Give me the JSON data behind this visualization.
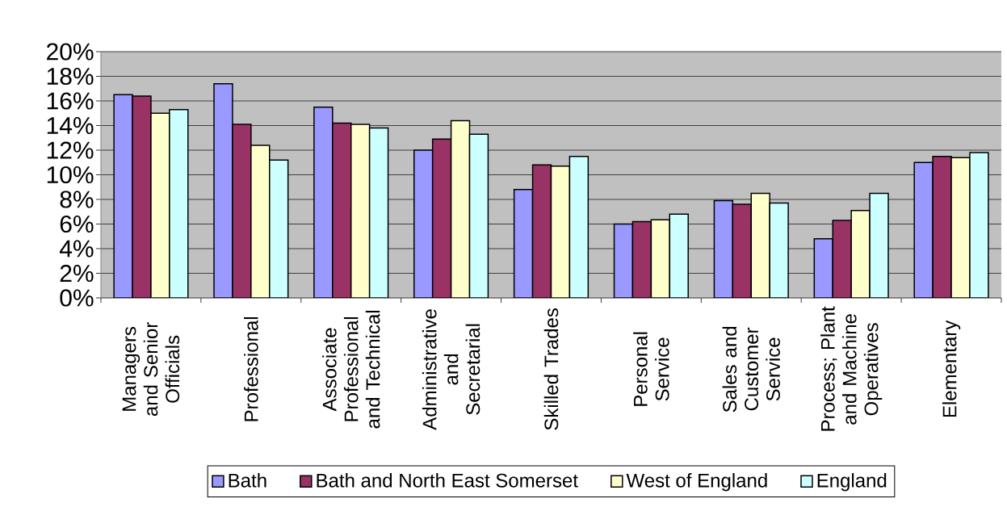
{
  "chart_data": {
    "type": "bar",
    "categories": [
      "Managers and Senior Officials",
      "Professional",
      "Associate Professional and Technical",
      "Administrative and Secretarial",
      "Skilled Trades",
      "Personal Service",
      "Sales and Customer Service",
      "Process; Plant and Machine Operatives",
      "Elementary"
    ],
    "series": [
      {
        "name": "Bath",
        "color": "#9999ff",
        "values": [
          16.5,
          17.4,
          15.5,
          12.0,
          8.8,
          6.0,
          7.9,
          4.8,
          11.0
        ]
      },
      {
        "name": "Bath and North East Somerset",
        "color": "#993366",
        "values": [
          16.4,
          14.1,
          14.2,
          12.9,
          10.8,
          6.2,
          7.6,
          6.3,
          11.5
        ]
      },
      {
        "name": "West of England",
        "color": "#ffffcc",
        "values": [
          15.0,
          12.4,
          14.1,
          14.4,
          10.7,
          6.35,
          8.5,
          7.1,
          11.4
        ]
      },
      {
        "name": "England",
        "color": "#ccffff",
        "values": [
          15.3,
          11.2,
          13.8,
          13.3,
          11.5,
          6.8,
          7.7,
          8.5,
          11.8
        ]
      }
    ],
    "ylim": [
      0,
      20
    ],
    "yticks": [
      {
        "value": 0,
        "label": "0%"
      },
      {
        "value": 2,
        "label": "2%"
      },
      {
        "value": 4,
        "label": "4%"
      },
      {
        "value": 6,
        "label": "6%"
      },
      {
        "value": 8,
        "label": "8%"
      },
      {
        "value": 10,
        "label": "10%"
      },
      {
        "value": 12,
        "label": "12%"
      },
      {
        "value": 14,
        "label": "14%"
      },
      {
        "value": 16,
        "label": "16%"
      },
      {
        "value": 18,
        "label": "18%"
      },
      {
        "value": 20,
        "label": "20%"
      }
    ],
    "grid": "y",
    "legend": "bottom"
  }
}
